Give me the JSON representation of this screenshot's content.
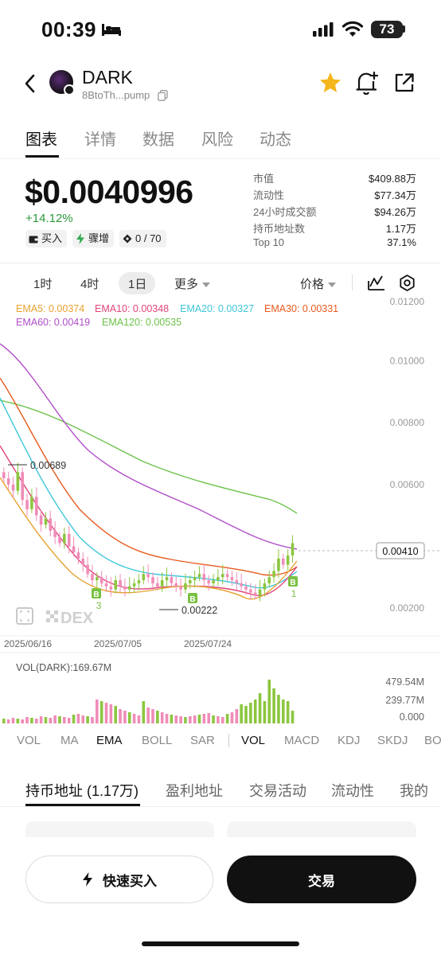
{
  "status": {
    "time": "00:39",
    "battery": "73"
  },
  "header": {
    "token_name": "DARK",
    "token_address": "8BtoTh...pump"
  },
  "tabs": [
    "图表",
    "详情",
    "数据",
    "风险",
    "动态"
  ],
  "price": {
    "value": "$0.0040996",
    "change": "+14.12%"
  },
  "chips": [
    {
      "label": "买入",
      "icon": "wallet-icon"
    },
    {
      "label": "骤增",
      "icon": "lightning-icon"
    },
    {
      "label": "0 / 70",
      "icon": "diamond-icon"
    }
  ],
  "stats": [
    {
      "label": "市值",
      "value": "$409.88万"
    },
    {
      "label": "流动性",
      "value": "$77.34万"
    },
    {
      "label": "24小时成交额",
      "value": "$94.26万"
    },
    {
      "label": "持币地址数",
      "value": "1.17万"
    },
    {
      "label": "Top 10",
      "value": "37.1%"
    }
  ],
  "intervals": [
    "1时",
    "4时",
    "1日",
    "更多"
  ],
  "chart_controls": {
    "price_mode": "价格"
  },
  "chart_data": {
    "type": "candlestick",
    "ema_legend": [
      {
        "name": "EMA5: 0.00374",
        "color": "#e8a230"
      },
      {
        "name": "EMA10: 0.00348",
        "color": "#e0457b"
      },
      {
        "name": "EMA20: 0.00327",
        "color": "#3ec7d9"
      },
      {
        "name": "EMA30: 0.00331",
        "color": "#e85a1e"
      },
      {
        "name": "EMA60: 0.00419",
        "color": "#b04fc9"
      },
      {
        "name": "EMA120: 0.00535",
        "color": "#6cc24a"
      }
    ],
    "y_ticks": [
      "0.01200",
      "0.01000",
      "0.00800",
      "0.00600",
      "0.00400",
      "0.00200"
    ],
    "x_ticks": [
      "2025/06/16",
      "2025/07/05",
      "2025/07/24"
    ],
    "high_label": "0.00689",
    "low_label": "0.00222",
    "current_price_label": "0.00410",
    "markers": [
      {
        "text": "B",
        "count": "3"
      },
      {
        "text": "B",
        "count": ""
      },
      {
        "text": "B",
        "count": "1"
      }
    ],
    "volume": {
      "title": "VOL(DARK):169.67M",
      "y_ticks": [
        "479.54M",
        "239.77M",
        "0.000"
      ]
    },
    "colors": {
      "up": "#8cc63f",
      "down": "#f08cb8"
    }
  },
  "indicator_tabs": [
    "VOL",
    "MA",
    "EMA",
    "BOLL",
    "SAR",
    "VOL",
    "MACD",
    "KDJ",
    "SKDJ",
    "BO"
  ],
  "bottom_tabs": [
    "持币地址 (1.17万)",
    "盈利地址",
    "交易活动",
    "流动性",
    "我的"
  ],
  "actions": {
    "quick_buy": "快速买入",
    "trade": "交易"
  }
}
